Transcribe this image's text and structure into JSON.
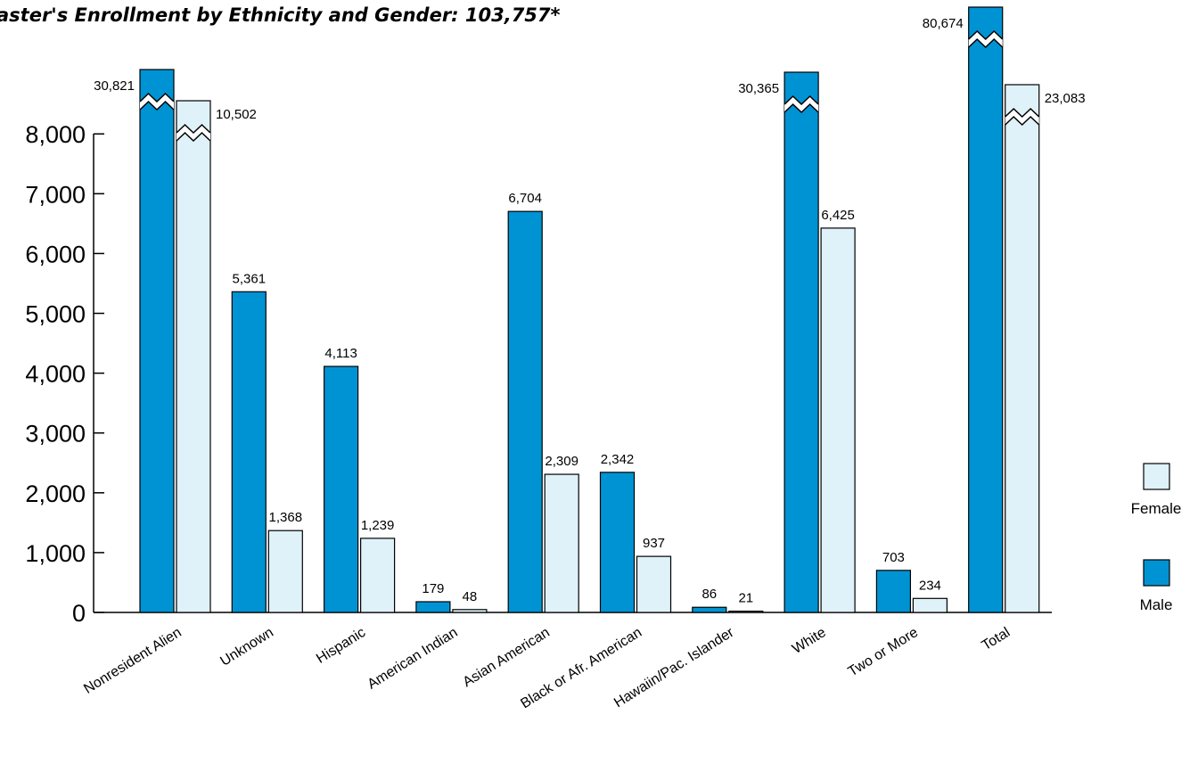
{
  "chart_data": {
    "type": "bar",
    "title": "aster's Enrollment by Ethnicity and Gender: 103,757*",
    "xlabel": "",
    "ylabel": "",
    "categories": [
      "Nonresident Alien",
      "Unknown",
      "Hispanic",
      "American Indian",
      "Asian American",
      "Black or Afr. American",
      "Hawaiin/Pac. Islander",
      "White",
      "Two or More",
      "Total"
    ],
    "series": [
      {
        "name": "Male",
        "color": "#0093d3",
        "values": [
          30821,
          5361,
          4113,
          179,
          6704,
          2342,
          86,
          30365,
          703,
          80674
        ]
      },
      {
        "name": "Female",
        "color": "#dff1f9",
        "values": [
          10502,
          1368,
          1239,
          48,
          2309,
          937,
          21,
          6425,
          234,
          23083
        ]
      }
    ],
    "value_labels": {
      "male": [
        "30,821",
        "5,361",
        "4,113",
        "179",
        "6,704",
        "2,342",
        "86",
        "30,365",
        "703",
        "80,674"
      ],
      "female": [
        "10,502",
        "1,368",
        "1,239",
        "48",
        "2,309",
        "937",
        "21",
        "6,425",
        "234",
        "23,083"
      ]
    },
    "y_ticks": [
      "0",
      "1,000",
      "2,000",
      "3,000",
      "4,000",
      "5,000",
      "6,000",
      "7,000",
      "8,000"
    ],
    "ylim": [
      0,
      8000
    ],
    "axis_break": true,
    "grid": false,
    "legend_position": "right",
    "legend": [
      {
        "label": "Female",
        "color": "#dff1f9"
      },
      {
        "label": "Male",
        "color": "#0093d3"
      }
    ]
  }
}
